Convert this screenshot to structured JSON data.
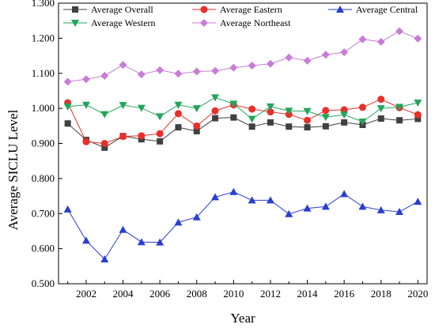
{
  "chart_data": {
    "type": "line",
    "title": "",
    "xlabel": "Year",
    "ylabel": "Average SICLU Level",
    "x": [
      2001,
      2002,
      2003,
      2004,
      2005,
      2006,
      2007,
      2008,
      2009,
      2010,
      2011,
      2012,
      2013,
      2014,
      2015,
      2016,
      2017,
      2018,
      2019,
      2020
    ],
    "xlim": [
      2000.5,
      2020.5
    ],
    "xticks": [
      2002,
      2004,
      2006,
      2008,
      2010,
      2012,
      2014,
      2016,
      2018,
      2020
    ],
    "xtick_labels": [
      "2002",
      "2004",
      "2006",
      "2008",
      "2010",
      "2012",
      "2014",
      "2016",
      "2018",
      "2020"
    ],
    "ylim": [
      0.5,
      1.3
    ],
    "yticks": [
      0.5,
      0.6,
      0.7,
      0.8,
      0.9,
      1.0,
      1.1,
      1.2,
      1.3
    ],
    "ytick_labels": [
      "0.500",
      "0.600",
      "0.700",
      "0.800",
      "0.900",
      "1.000",
      "1.100",
      "1.200",
      "1.300"
    ],
    "grid": false,
    "legend_position": "top",
    "series": [
      {
        "name": "Average Overall",
        "color": "#404040",
        "marker": "square",
        "values": [
          0.957,
          0.91,
          0.888,
          0.921,
          0.912,
          0.906,
          0.946,
          0.935,
          0.972,
          0.974,
          0.948,
          0.96,
          0.948,
          0.946,
          0.949,
          0.96,
          0.953,
          0.971,
          0.966,
          0.97
        ]
      },
      {
        "name": "Average Eastern",
        "color": "#e8302a",
        "marker": "circle",
        "values": [
          1.016,
          0.905,
          0.9,
          0.92,
          0.922,
          0.928,
          0.985,
          0.95,
          0.993,
          1.01,
          0.998,
          0.99,
          0.983,
          0.966,
          0.994,
          0.996,
          1.003,
          1.026,
          1.002,
          0.982
        ]
      },
      {
        "name": "Average Central",
        "color": "#2a3fcf",
        "marker": "triangle-up",
        "values": [
          0.712,
          0.623,
          0.57,
          0.654,
          0.619,
          0.618,
          0.675,
          0.69,
          0.747,
          0.762,
          0.738,
          0.738,
          0.699,
          0.715,
          0.72,
          0.756,
          0.72,
          0.71,
          0.705,
          0.734
        ]
      },
      {
        "name": "Average  Western",
        "color": "#22a55a",
        "marker": "triangle-down",
        "values": [
          1.005,
          1.01,
          0.983,
          1.009,
          1.001,
          0.977,
          1.01,
          1.0,
          1.031,
          1.013,
          0.97,
          1.005,
          0.993,
          0.992,
          0.975,
          0.982,
          0.962,
          1.0,
          1.004,
          1.016
        ]
      },
      {
        "name": "Average Northeast",
        "color": "#c77dd6",
        "marker": "diamond",
        "values": [
          1.076,
          1.083,
          1.093,
          1.124,
          1.097,
          1.109,
          1.099,
          1.105,
          1.107,
          1.116,
          1.122,
          1.127,
          1.145,
          1.136,
          1.153,
          1.16,
          1.197,
          1.19,
          1.22,
          1.199
        ]
      }
    ]
  }
}
